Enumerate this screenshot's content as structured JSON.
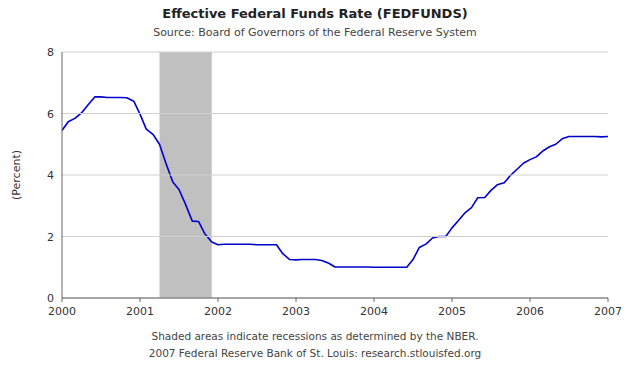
{
  "chart_data": {
    "type": "line",
    "title": "Effective Federal Funds Rate (FEDFUNDS)",
    "subtitle": "Source: Board of Governors of the Federal Reserve System",
    "y_label": "(Percent)",
    "annotations": [
      "Shaded areas indicate recessions as determined by the NBER.",
      "2007 Federal Reserve Bank of St. Louis: research.stlouisfed.org"
    ],
    "recessions": [
      {
        "start": 2001.25,
        "end": 2001.92,
        "color": "#c0c0c0"
      }
    ],
    "color": "#0000cc",
    "grid": true,
    "xlim": [
      2000.0,
      2007.0
    ],
    "ylim": [
      0,
      8
    ],
    "xticks": [
      2000,
      2001,
      2002,
      2003,
      2004,
      2005,
      2006,
      2007
    ],
    "yticks": [
      0,
      2,
      4,
      6,
      8
    ],
    "x": [
      2000.0,
      2000.08,
      2000.17,
      2000.25,
      2000.33,
      2000.42,
      2000.5,
      2000.58,
      2000.67,
      2000.75,
      2000.83,
      2000.92,
      2001.0,
      2001.08,
      2001.17,
      2001.25,
      2001.33,
      2001.42,
      2001.5,
      2001.58,
      2001.67,
      2001.75,
      2001.83,
      2001.92,
      2002.0,
      2002.08,
      2002.17,
      2002.25,
      2002.33,
      2002.42,
      2002.5,
      2002.58,
      2002.67,
      2002.75,
      2002.83,
      2002.92,
      2003.0,
      2003.08,
      2003.17,
      2003.25,
      2003.33,
      2003.42,
      2003.5,
      2003.58,
      2003.67,
      2003.75,
      2003.83,
      2003.92,
      2004.0,
      2004.08,
      2004.17,
      2004.25,
      2004.33,
      2004.42,
      2004.5,
      2004.58,
      2004.67,
      2004.75,
      2004.83,
      2004.92,
      2005.0,
      2005.08,
      2005.17,
      2005.25,
      2005.33,
      2005.42,
      2005.5,
      2005.58,
      2005.67,
      2005.75,
      2005.83,
      2005.92,
      2006.0,
      2006.08,
      2006.17,
      2006.25,
      2006.33,
      2006.42,
      2006.5,
      2006.58,
      2006.67,
      2006.75,
      2006.83,
      2006.92,
      2007.0
    ],
    "values": [
      5.45,
      5.73,
      5.85,
      6.02,
      6.27,
      6.54,
      6.54,
      6.52,
      6.52,
      6.52,
      6.51,
      6.4,
      5.98,
      5.49,
      5.31,
      5.0,
      4.4,
      3.77,
      3.53,
      3.07,
      2.5,
      2.49,
      2.09,
      1.82,
      1.73,
      1.75,
      1.75,
      1.75,
      1.75,
      1.75,
      1.73,
      1.73,
      1.73,
      1.73,
      1.44,
      1.25,
      1.24,
      1.25,
      1.25,
      1.25,
      1.22,
      1.13,
      1.01,
      1.01,
      1.01,
      1.01,
      1.01,
      1.01,
      1.0,
      1.0,
      1.0,
      1.0,
      1.0,
      1.0,
      1.25,
      1.64,
      1.76,
      1.95,
      2.0,
      2.0,
      2.28,
      2.51,
      2.78,
      2.94,
      3.26,
      3.27,
      3.5,
      3.68,
      3.75,
      3.99,
      4.18,
      4.39,
      4.5,
      4.59,
      4.79,
      4.92,
      5.0,
      5.19,
      5.25,
      5.25,
      5.25,
      5.25,
      5.25,
      5.24,
      5.25
    ]
  }
}
